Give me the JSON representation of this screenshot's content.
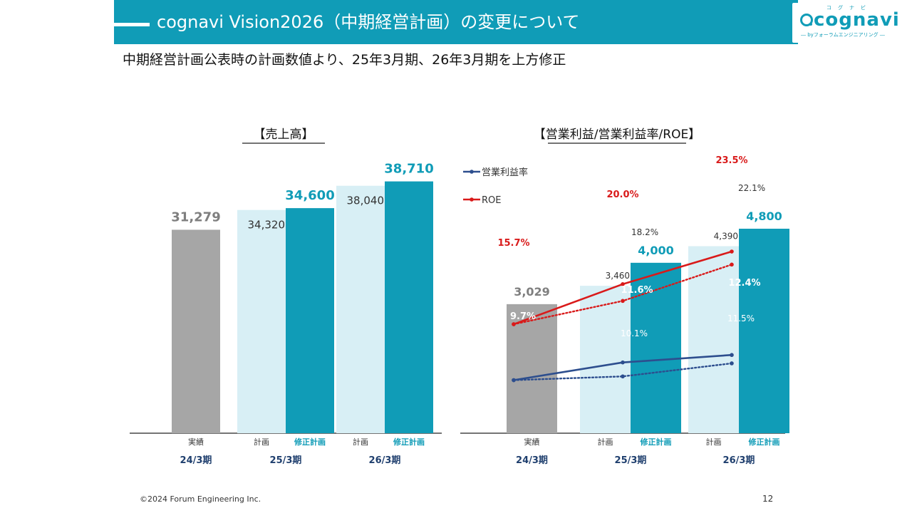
{
  "header": {
    "title": "cognavi Vision2026（中期経営計画）の変更について",
    "logo_word": "cognavi",
    "logo_ruby": "コグナビ",
    "logo_sub": "― byフォーラムエンジニアリング ―"
  },
  "subtitle": "中期経営計画公表時の計画数値より、25年3月期、26年3月期を上方修正",
  "footer": {
    "copyright": "©2024 Forum Engineering Inc.",
    "page_number": "12"
  },
  "colors": {
    "teal": "#109cb7",
    "light_teal": "#d8eff5",
    "gray": "#a6a6a6",
    "navy": "#2d4e8e",
    "red": "#d91a1a"
  },
  "chart_data": [
    {
      "type": "bar",
      "title": "【売上高】",
      "groups": [
        {
          "period": "24/3期",
          "bars": [
            {
              "sub": "実績",
              "kind": "actual",
              "value": 31279,
              "label": "31,279"
            }
          ]
        },
        {
          "period": "25/3期",
          "bars": [
            {
              "sub": "計画",
              "kind": "plan",
              "value": 34320,
              "label": "34,320"
            },
            {
              "sub": "修正計画",
              "kind": "revised",
              "value": 34600,
              "label": "34,600"
            }
          ]
        },
        {
          "period": "26/3期",
          "bars": [
            {
              "sub": "計画",
              "kind": "plan",
              "value": 38040,
              "label": "38,040"
            },
            {
              "sub": "修正計画",
              "kind": "revised",
              "value": 38710,
              "label": "38,710"
            }
          ]
        }
      ],
      "ylim": [
        0,
        42500
      ]
    },
    {
      "type": "bar+line",
      "title": "【営業利益/営業利益率/ROE】",
      "groups": [
        {
          "period": "24/3期",
          "bars": [
            {
              "sub": "実績",
              "kind": "actual",
              "value": 3029,
              "label": "3,029"
            }
          ]
        },
        {
          "period": "25/3期",
          "bars": [
            {
              "sub": "計画",
              "kind": "plan",
              "value": 3460,
              "label": "3,460"
            },
            {
              "sub": "修正計画",
              "kind": "revised",
              "value": 4000,
              "label": "4,000"
            }
          ]
        },
        {
          "period": "26/3期",
          "bars": [
            {
              "sub": "計画",
              "kind": "plan",
              "value": 4390,
              "label": "4,390"
            },
            {
              "sub": "修正計画",
              "kind": "revised",
              "value": 4800,
              "label": "4,800"
            }
          ]
        }
      ],
      "ylim": [
        0,
        6000
      ],
      "legend": [
        "営業利益率",
        "ROE"
      ],
      "lines": [
        {
          "name": "営業利益率",
          "color": "#2d4e8e",
          "style": "solid",
          "values": [
            9.7,
            11.6,
            12.4
          ],
          "labels": [
            "9.7%",
            "11.6%",
            "12.4%"
          ]
        },
        {
          "name": "営業利益率",
          "color": "#2d4e8e",
          "style": "dotted",
          "values": [
            9.7,
            10.1,
            11.5
          ],
          "labels": [
            "",
            "10.1%",
            "11.5%"
          ]
        },
        {
          "name": "ROE",
          "color": "#d91a1a",
          "style": "solid",
          "values": [
            15.7,
            20.0,
            23.5
          ],
          "labels": [
            "15.7%",
            "20.0%",
            "23.5%"
          ]
        },
        {
          "name": "ROE",
          "color": "#d91a1a",
          "style": "dotted",
          "values": [
            15.7,
            18.2,
            22.1
          ],
          "labels": [
            "",
            "18.2%",
            "22.1%"
          ]
        }
      ]
    }
  ]
}
